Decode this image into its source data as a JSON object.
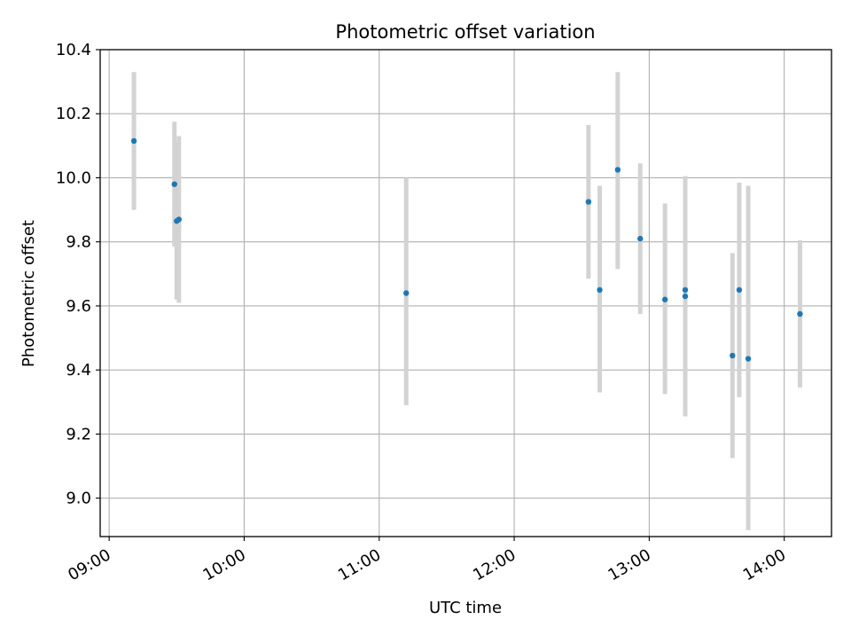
{
  "chart_data": {
    "type": "scatter",
    "title": "Photometric offset variation",
    "xlabel": "UTC time",
    "ylabel": "Photometric offset",
    "grid": true,
    "x_tick_labels": [
      "09:00",
      "10:00",
      "11:00",
      "12:00",
      "13:00",
      "14:00"
    ],
    "y_tick_labels": [
      "9.0",
      "9.2",
      "9.4",
      "9.6",
      "9.8",
      "10.0",
      "10.2",
      "10.4"
    ],
    "y_ticks": [
      9.0,
      9.2,
      9.4,
      9.6,
      9.8,
      10.0,
      10.2,
      10.4
    ],
    "xlim": [
      "08:56",
      "14:21"
    ],
    "ylim": [
      8.88,
      10.4
    ],
    "colors": {
      "point": "#1f77b4",
      "errorbar": "#d3d3d3",
      "grid": "#b0b0b0"
    },
    "series": [
      {
        "points": [
          {
            "x": "09:11",
            "y": 10.115,
            "ylow": 9.9,
            "yhigh": 10.33
          },
          {
            "x": "09:29",
            "y": 9.98,
            "ylow": 9.785,
            "yhigh": 10.175
          },
          {
            "x": "09:30",
            "y": 9.865,
            "ylow": 9.62,
            "yhigh": 10.11
          },
          {
            "x": "09:31",
            "y": 9.87,
            "ylow": 9.61,
            "yhigh": 10.13
          },
          {
            "x": "11:12",
            "y": 9.64,
            "ylow": 9.29,
            "yhigh": 10.0
          },
          {
            "x": "12:33",
            "y": 9.925,
            "ylow": 9.685,
            "yhigh": 10.165
          },
          {
            "x": "12:38",
            "y": 9.65,
            "ylow": 9.33,
            "yhigh": 9.975
          },
          {
            "x": "12:46",
            "y": 10.025,
            "ylow": 9.715,
            "yhigh": 10.33
          },
          {
            "x": "12:56",
            "y": 9.81,
            "ylow": 9.575,
            "yhigh": 10.045
          },
          {
            "x": "13:07",
            "y": 9.62,
            "ylow": 9.325,
            "yhigh": 9.92
          },
          {
            "x": "13:16",
            "y": 9.65,
            "ylow": 9.29,
            "yhigh": 10.005
          },
          {
            "x": "13:16",
            "y": 9.63,
            "ylow": 9.255,
            "yhigh": 10.005
          },
          {
            "x": "13:37",
            "y": 9.445,
            "ylow": 9.125,
            "yhigh": 9.765
          },
          {
            "x": "13:40",
            "y": 9.65,
            "ylow": 9.315,
            "yhigh": 9.985
          },
          {
            "x": "13:44",
            "y": 9.435,
            "ylow": 8.9,
            "yhigh": 9.975
          },
          {
            "x": "14:07",
            "y": 9.575,
            "ylow": 9.345,
            "yhigh": 9.805
          }
        ]
      }
    ]
  }
}
